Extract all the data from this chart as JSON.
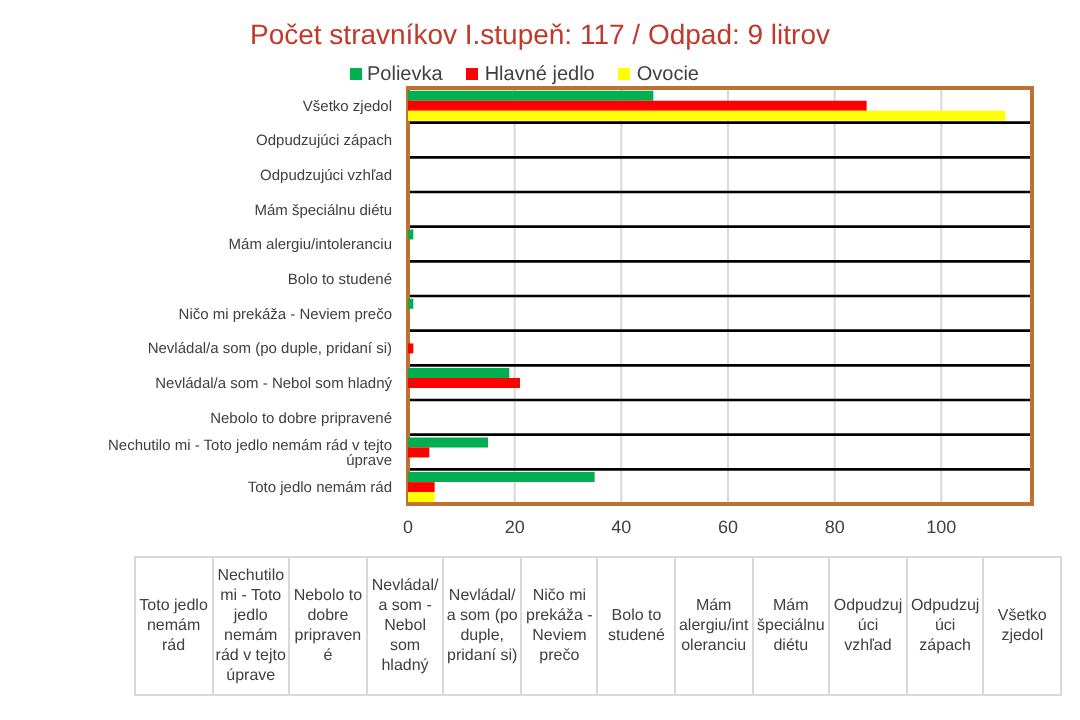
{
  "chart_data": {
    "type": "bar",
    "orientation": "horizontal",
    "title": "Počet stravníkov I.stupeň: 117 / Odpad: 9 litrov",
    "categories": [
      "Všetko zjedol",
      "Odpudzujúci zápach",
      "Odpudzujúci vzhľad",
      "Mám špeciálnu diétu",
      "Mám alergiu/intoleranciu",
      "Bolo to studené",
      "Ničo mi prekáža - Neviem prečo",
      "Nevládal/a som (po duple, pridaní si)",
      "Nevládal/a som - Nebol som hladný",
      "Nebolo to dobre pripravené",
      "Nechutilo mi -  Toto jedlo nemám rád v tejto úprave",
      "Toto jedlo nemám rád"
    ],
    "series": [
      {
        "name": "Polievka",
        "color": "#00b050",
        "values": [
          46,
          0,
          0,
          0,
          1,
          0,
          1,
          0,
          19,
          0,
          15,
          35
        ]
      },
      {
        "name": "Hlavné jedlo",
        "color": "#ff0000",
        "values": [
          86,
          0,
          0,
          0,
          0,
          0,
          0,
          1,
          21,
          0,
          4,
          5
        ]
      },
      {
        "name": "Ovocie",
        "color": "#ffff00",
        "values": [
          112,
          0,
          0,
          0,
          0,
          0,
          0,
          0,
          0,
          0,
          0,
          5
        ]
      }
    ],
    "xlim": [
      0,
      117
    ],
    "xticks": [
      0,
      20,
      40,
      60,
      80,
      100
    ],
    "grid": true,
    "legend": "top"
  }
}
